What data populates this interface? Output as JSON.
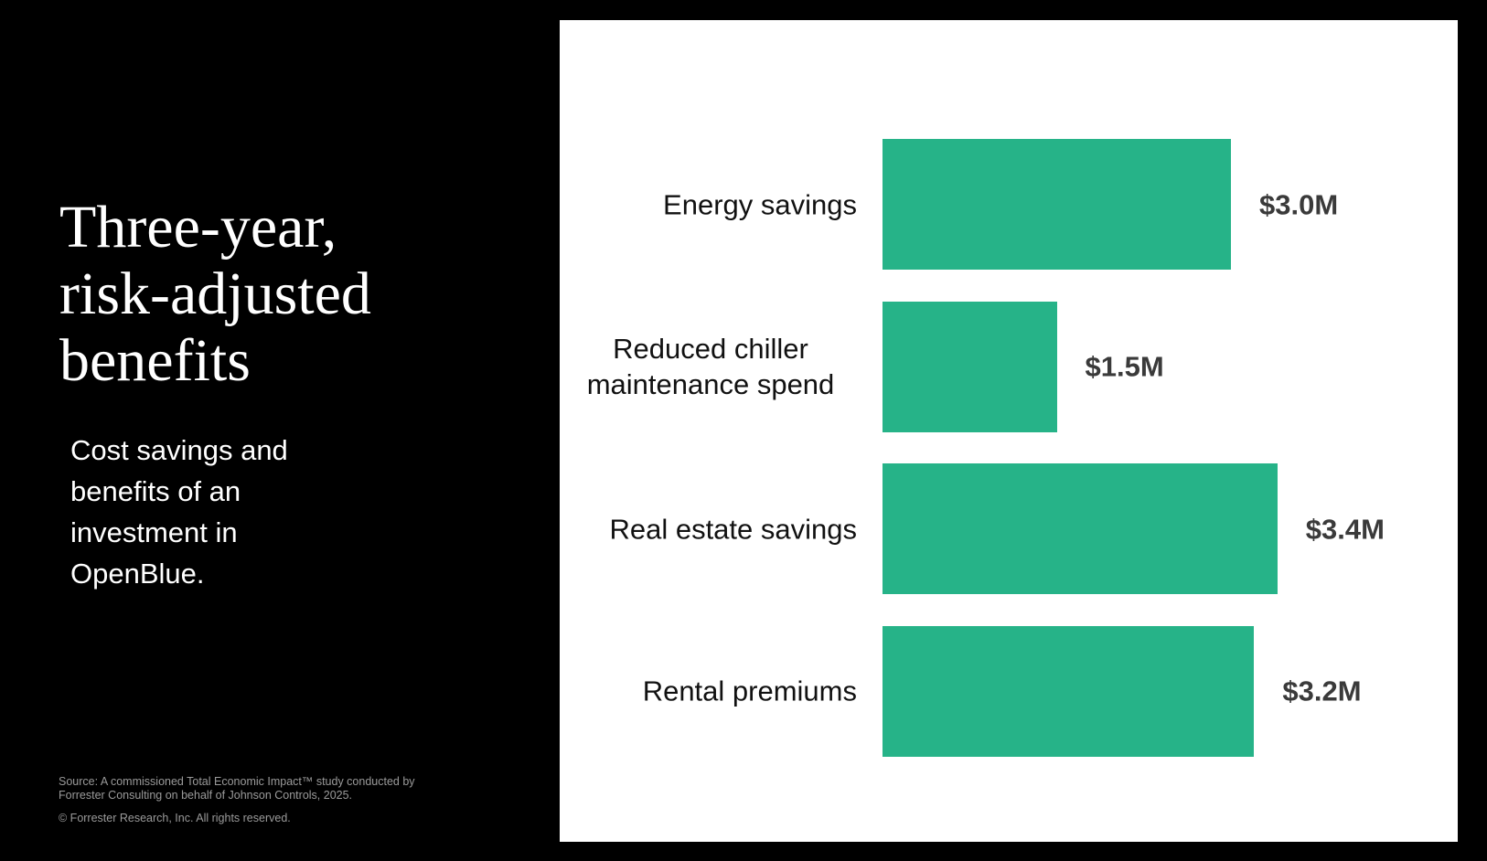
{
  "title": "Three-year, risk-adjusted benefits",
  "subtitle": "Cost savings and benefits of an investment in OpenBlue.",
  "source": "Source: A commissioned Total Economic Impact™ study conducted by Forrester Consulting on behalf of Johnson Controls, 2025.",
  "copyright": "© Forrester Research, Inc. All rights reserved.",
  "chart_data": {
    "type": "bar",
    "orientation": "horizontal",
    "categories": [
      "Energy savings",
      "Reduced chiller maintenance spend",
      "Real estate savings",
      "Rental premiums"
    ],
    "values": [
      3.0,
      1.5,
      3.4,
      3.2
    ],
    "value_labels": [
      "$3.0M",
      "$1.5M",
      "$3.4M",
      "$3.2M"
    ],
    "color": "#26b388"
  }
}
